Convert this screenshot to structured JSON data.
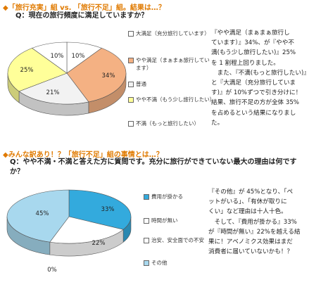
{
  "section1": {
    "heading": "◆「旅行充実」組 vs. 「旅行不足」組。結果は…？",
    "question": "Q：現在の旅行頻度に満足していますか？",
    "comment_lines": [
      "『やや満足（まぁまぁ旅行し",
      "ています）』34%、が『やや不",
      "満(もう少し旅行したい)』25%",
      "を 1 割程上回りました。",
      "　また、『不満(もっと旅行したい)』",
      "と『大満足（充分旅行していま",
      "す)』が 10%ずつで引き分けに！",
      "結果、旅行不足の方が全体 35%",
      "を占めるという結果になりまし",
      "た。"
    ]
  },
  "section2": {
    "heading": "◆みんな訳あり！？「旅行不足」組の事情とは…？",
    "question": "Q：やや不満・不満と答えた方に質問です。充分に旅行ができていない最大の理由は何ですか？",
    "comment_lines": [
      "『その他』が 45%となり、「ペ",
      "ットがいる」、「有休が取りに",
      "くい」など理由は十人十色。",
      "　そして、『費用が掛かる』33%",
      "が『時間が無い』22%を越える結",
      "果に！アベノミクス効果はまだ",
      "消費者に届いていないかも！？"
    ]
  },
  "chart_data": [
    {
      "type": "pie",
      "categories": [
        "大満足（充分旅行しています）",
        "やや満足（まぁまぁ旅行しています）",
        "普通",
        "やや不満（もう少し旅行したい）",
        "不満（もっと旅行したい）"
      ],
      "values": [
        10,
        34,
        21,
        25,
        10
      ],
      "labels": [
        "10%",
        "34%",
        "21%",
        "25%",
        "10%"
      ],
      "colors": [
        "#ffffff",
        "#f4b183",
        "#f2f2f2",
        "#ffff99",
        "#ffffff"
      ]
    },
    {
      "type": "pie",
      "categories": [
        "費用が掛かる",
        "時間が無い",
        "治安、安全面での不安",
        "その他"
      ],
      "values": [
        33,
        22,
        0,
        45
      ],
      "labels": [
        "33%",
        "22%",
        "0%",
        "45%"
      ],
      "colors": [
        "#33aadd",
        "#ffffff",
        "#ffffff",
        "#a8d8ee"
      ]
    }
  ]
}
